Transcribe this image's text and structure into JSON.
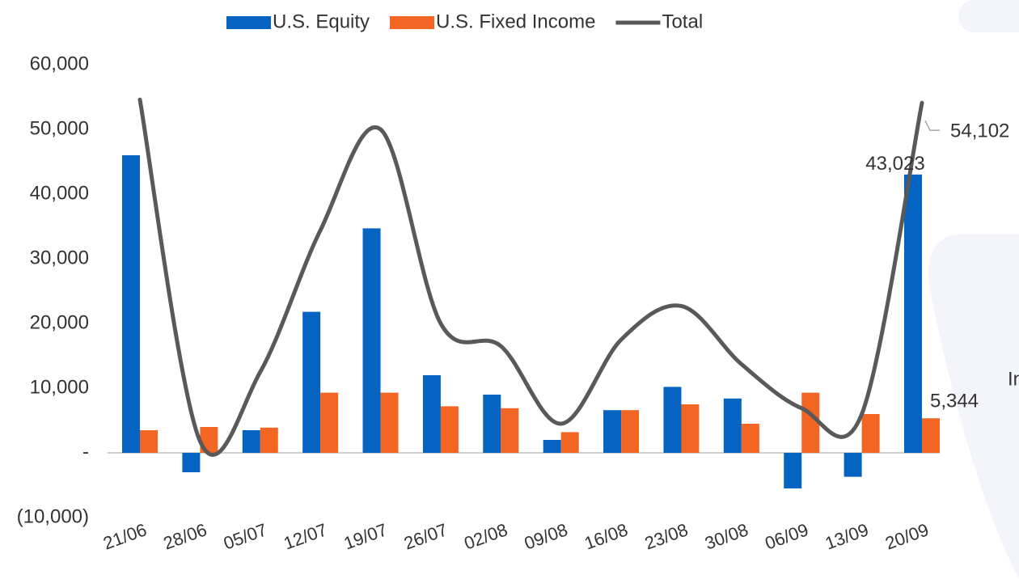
{
  "chart_data": {
    "type": "bar_line",
    "categories": [
      "21/06",
      "28/06",
      "05/07",
      "12/07",
      "19/07",
      "26/07",
      "02/08",
      "09/08",
      "16/08",
      "23/08",
      "30/08",
      "06/09",
      "13/09",
      "20/09"
    ],
    "series": [
      {
        "name": "U.S. Equity",
        "type": "bar",
        "color": "#0563c1",
        "values": [
          46000,
          -3000,
          3500,
          21800,
          34700,
          12000,
          9000,
          2000,
          6600,
          10200,
          8400,
          -5500,
          -3700,
          43023
        ],
        "value_labels": [
          null,
          null,
          null,
          null,
          null,
          null,
          null,
          null,
          null,
          null,
          null,
          null,
          null,
          "43,023"
        ]
      },
      {
        "name": "U.S. Fixed Income",
        "type": "bar",
        "color": "#f26522",
        "values": [
          3500,
          4000,
          3900,
          9300,
          9300,
          7200,
          6900,
          3200,
          6600,
          7500,
          4500,
          9300,
          6000,
          5344
        ],
        "value_labels": [
          null,
          null,
          null,
          null,
          null,
          null,
          null,
          null,
          null,
          null,
          null,
          null,
          null,
          "5,344"
        ]
      },
      {
        "name": "Total",
        "type": "line",
        "color": "#595959",
        "values": [
          54600,
          1800,
          12500,
          34400,
          50000,
          20000,
          16500,
          4500,
          17500,
          22700,
          13700,
          6900,
          6000,
          54102
        ],
        "value_labels": [
          null,
          null,
          null,
          null,
          null,
          null,
          null,
          null,
          null,
          null,
          null,
          null,
          null,
          "54,102"
        ]
      }
    ],
    "ylim": [
      -10000,
      60000
    ],
    "yticks": [
      {
        "value": -10000,
        "label": "(10,000)"
      },
      {
        "value": 0,
        "label": "-"
      },
      {
        "value": 10000,
        "label": "10,000"
      },
      {
        "value": 20000,
        "label": "20,000"
      },
      {
        "value": 30000,
        "label": "30,000"
      },
      {
        "value": 40000,
        "label": "40,000"
      },
      {
        "value": 50000,
        "label": "50,000"
      },
      {
        "value": 60000,
        "label": "60,000"
      }
    ],
    "grid": false,
    "legend": "top",
    "side_note": "In"
  }
}
